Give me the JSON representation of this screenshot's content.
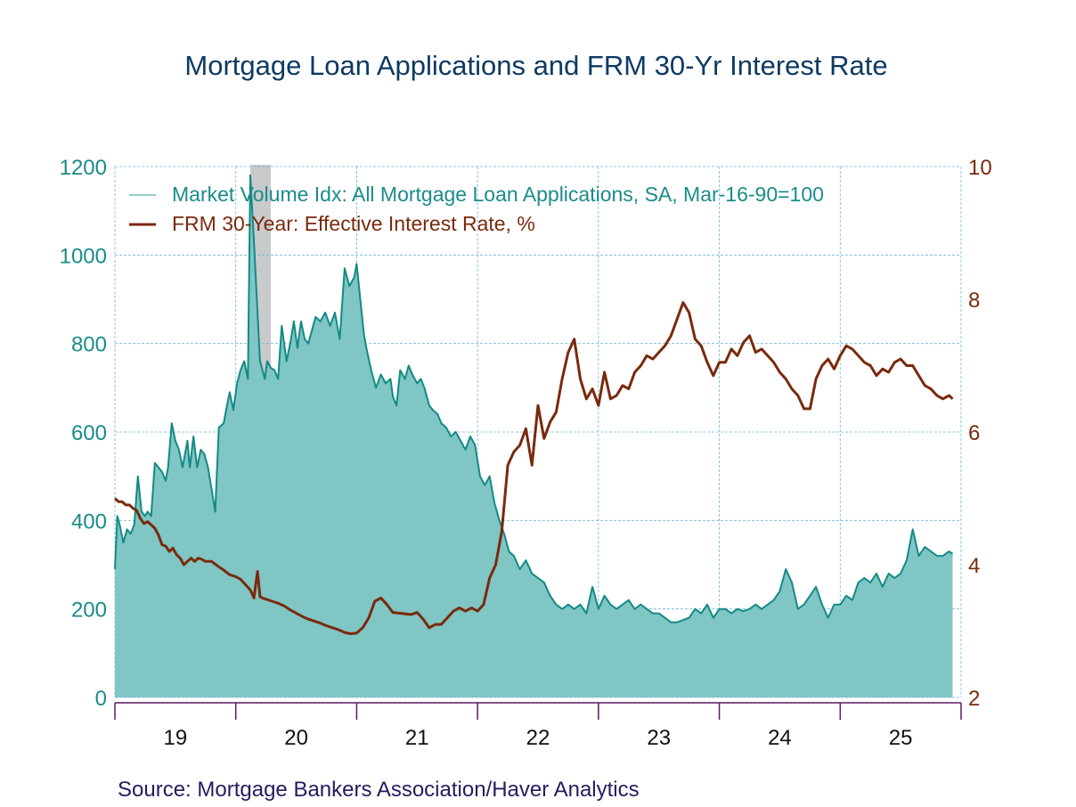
{
  "chart_data": {
    "type": "area+line",
    "title": "Mortgage Loan Applications and FRM 30-Yr Interest Rate",
    "source": "Source:  Mortgage Bankers Association/Haver Analytics",
    "xlabel": "",
    "x_tick_labels": [
      "19",
      "20",
      "21",
      "22",
      "23",
      "24",
      "25"
    ],
    "x_range": [
      2019.0,
      2026.0
    ],
    "left_axis": {
      "label": "Market Volume Idx",
      "ticks": [
        0,
        200,
        400,
        600,
        800,
        1000,
        1200
      ],
      "ylim": [
        0,
        1200
      ],
      "color": "#1a8c8a"
    },
    "right_axis": {
      "label": "FRM 30-Year %",
      "ticks": [
        2,
        4,
        6,
        8,
        10
      ],
      "ylim": [
        2,
        10
      ],
      "color": "#7a2a0c"
    },
    "grid": true,
    "legend_position": "top-left inside",
    "recession_shading": {
      "start": 2020.12,
      "end": 2020.29,
      "color": "#c8cacc"
    },
    "series": [
      {
        "name": "Market Volume Idx: All Mortgage Loan Applications, SA, Mar-16-90=100",
        "axis": "left",
        "style": "area",
        "line_color": "#138a86",
        "fill_color": "#7fc6c4",
        "x": [
          2019.0,
          2019.02,
          2019.04,
          2019.07,
          2019.1,
          2019.13,
          2019.16,
          2019.19,
          2019.22,
          2019.25,
          2019.27,
          2019.3,
          2019.33,
          2019.36,
          2019.39,
          2019.42,
          2019.44,
          2019.47,
          2019.5,
          2019.53,
          2019.56,
          2019.6,
          2019.62,
          2019.65,
          2019.68,
          2019.71,
          2019.74,
          2019.77,
          2019.8,
          2019.83,
          2019.86,
          2019.9,
          2019.92,
          2019.95,
          2019.98,
          2020.01,
          2020.04,
          2020.07,
          2020.1,
          2020.12,
          2020.15,
          2020.18,
          2020.2,
          2020.22,
          2020.24,
          2020.26,
          2020.29,
          2020.32,
          2020.35,
          2020.38,
          2020.42,
          2020.45,
          2020.48,
          2020.51,
          2020.54,
          2020.57,
          2020.6,
          2020.63,
          2020.66,
          2020.7,
          2020.74,
          2020.78,
          2020.82,
          2020.86,
          2020.9,
          2020.94,
          2020.98,
          2021.0,
          2021.03,
          2021.06,
          2021.08,
          2021.12,
          2021.16,
          2021.2,
          2021.24,
          2021.28,
          2021.3,
          2021.33,
          2021.36,
          2021.4,
          2021.43,
          2021.46,
          2021.5,
          2021.53,
          2021.56,
          2021.6,
          2021.63,
          2021.67,
          2021.7,
          2021.74,
          2021.78,
          2021.82,
          2021.86,
          2021.9,
          2021.94,
          2021.98,
          2022.02,
          2022.06,
          2022.1,
          2022.14,
          2022.18,
          2022.22,
          2022.26,
          2022.3,
          2022.35,
          2022.4,
          2022.45,
          2022.5,
          2022.55,
          2022.6,
          2022.65,
          2022.7,
          2022.75,
          2022.8,
          2022.85,
          2022.9,
          2022.95,
          2023.0,
          2023.05,
          2023.1,
          2023.15,
          2023.2,
          2023.25,
          2023.3,
          2023.35,
          2023.4,
          2023.45,
          2023.5,
          2023.55,
          2023.6,
          2023.65,
          2023.7,
          2023.75,
          2023.8,
          2023.85,
          2023.9,
          2023.95,
          2024.0,
          2024.05,
          2024.1,
          2024.15,
          2024.2,
          2024.25,
          2024.3,
          2024.35,
          2024.4,
          2024.45,
          2024.5,
          2024.55,
          2024.6,
          2024.65,
          2024.7,
          2024.75,
          2024.8,
          2024.85,
          2024.9,
          2024.95,
          2025.0,
          2025.05,
          2025.1,
          2025.15,
          2025.2,
          2025.25,
          2025.3,
          2025.35,
          2025.4,
          2025.45,
          2025.5,
          2025.55,
          2025.6,
          2025.65,
          2025.7,
          2025.75,
          2025.8,
          2025.85,
          2025.9,
          2025.93
        ],
        "values": [
          290,
          410,
          390,
          350,
          380,
          370,
          390,
          500,
          420,
          410,
          420,
          410,
          530,
          520,
          510,
          490,
          520,
          620,
          580,
          560,
          520,
          580,
          520,
          590,
          520,
          560,
          550,
          520,
          470,
          420,
          610,
          620,
          650,
          690,
          650,
          710,
          740,
          760,
          720,
          1180,
          1030,
          870,
          760,
          740,
          720,
          760,
          745,
          740,
          720,
          840,
          760,
          800,
          850,
          790,
          850,
          810,
          800,
          830,
          860,
          850,
          870,
          840,
          870,
          810,
          970,
          930,
          950,
          980,
          900,
          820,
          790,
          740,
          700,
          730,
          710,
          720,
          680,
          660,
          740,
          720,
          750,
          730,
          710,
          720,
          700,
          660,
          650,
          640,
          620,
          610,
          590,
          600,
          580,
          560,
          590,
          570,
          500,
          480,
          500,
          440,
          400,
          370,
          330,
          320,
          290,
          310,
          280,
          270,
          260,
          230,
          210,
          200,
          210,
          200,
          210,
          190,
          250,
          200,
          230,
          210,
          200,
          210,
          220,
          200,
          210,
          200,
          190,
          190,
          180,
          170,
          170,
          175,
          180,
          200,
          190,
          210,
          180,
          200,
          200,
          190,
          200,
          195,
          200,
          210,
          200,
          210,
          220,
          240,
          290,
          260,
          200,
          210,
          230,
          250,
          210,
          180,
          210,
          210,
          230,
          220,
          260,
          270,
          260,
          280,
          250,
          280,
          270,
          280,
          310,
          380,
          320,
          340,
          330,
          320,
          320,
          330,
          325
        ]
      },
      {
        "name": "FRM 30-Year: Effective Interest Rate, %",
        "axis": "right",
        "style": "line",
        "color": "#7a2a0c",
        "x": [
          2019.0,
          2019.03,
          2019.06,
          2019.09,
          2019.12,
          2019.15,
          2019.18,
          2019.21,
          2019.24,
          2019.27,
          2019.3,
          2019.33,
          2019.36,
          2019.39,
          2019.42,
          2019.45,
          2019.48,
          2019.51,
          2019.54,
          2019.57,
          2019.6,
          2019.63,
          2019.66,
          2019.69,
          2019.72,
          2019.75,
          2019.8,
          2019.85,
          2019.9,
          2019.95,
          2020.0,
          2020.04,
          2020.08,
          2020.12,
          2020.15,
          2020.18,
          2020.2,
          2020.22,
          2020.25,
          2020.3,
          2020.35,
          2020.4,
          2020.45,
          2020.5,
          2020.55,
          2020.6,
          2020.65,
          2020.7,
          2020.75,
          2020.8,
          2020.85,
          2020.9,
          2020.95,
          2021.0,
          2021.05,
          2021.1,
          2021.15,
          2021.2,
          2021.25,
          2021.3,
          2021.35,
          2021.4,
          2021.45,
          2021.5,
          2021.55,
          2021.6,
          2021.65,
          2021.7,
          2021.75,
          2021.8,
          2021.85,
          2021.9,
          2021.95,
          2022.0,
          2022.05,
          2022.1,
          2022.15,
          2022.2,
          2022.25,
          2022.3,
          2022.35,
          2022.4,
          2022.45,
          2022.5,
          2022.55,
          2022.6,
          2022.65,
          2022.7,
          2022.75,
          2022.8,
          2022.85,
          2022.9,
          2022.95,
          2023.0,
          2023.05,
          2023.1,
          2023.15,
          2023.2,
          2023.25,
          2023.3,
          2023.35,
          2023.4,
          2023.45,
          2023.5,
          2023.55,
          2023.6,
          2023.65,
          2023.7,
          2023.75,
          2023.8,
          2023.85,
          2023.9,
          2023.95,
          2024.0,
          2024.05,
          2024.1,
          2024.15,
          2024.2,
          2024.25,
          2024.3,
          2024.35,
          2024.4,
          2024.45,
          2024.5,
          2024.55,
          2024.6,
          2024.65,
          2024.7,
          2024.75,
          2024.8,
          2024.85,
          2024.9,
          2024.95,
          2025.0,
          2025.05,
          2025.1,
          2025.15,
          2025.2,
          2025.25,
          2025.3,
          2025.35,
          2025.4,
          2025.45,
          2025.5,
          2025.55,
          2025.6,
          2025.65,
          2025.7,
          2025.75,
          2025.8,
          2025.85,
          2025.9,
          2025.93
        ],
        "values": [
          5.0,
          4.95,
          4.95,
          4.9,
          4.9,
          4.85,
          4.82,
          4.7,
          4.62,
          4.65,
          4.6,
          4.55,
          4.45,
          4.3,
          4.28,
          4.2,
          4.25,
          4.15,
          4.1,
          4.0,
          4.05,
          4.1,
          4.05,
          4.1,
          4.08,
          4.05,
          4.05,
          3.98,
          3.92,
          3.85,
          3.82,
          3.78,
          3.7,
          3.62,
          3.5,
          3.9,
          3.52,
          3.5,
          3.48,
          3.45,
          3.42,
          3.38,
          3.32,
          3.27,
          3.22,
          3.18,
          3.15,
          3.12,
          3.08,
          3.05,
          3.02,
          2.98,
          2.96,
          2.97,
          3.05,
          3.2,
          3.45,
          3.5,
          3.4,
          3.28,
          3.27,
          3.26,
          3.25,
          3.28,
          3.18,
          3.05,
          3.1,
          3.1,
          3.2,
          3.3,
          3.35,
          3.3,
          3.35,
          3.3,
          3.4,
          3.8,
          4.0,
          4.5,
          5.5,
          5.7,
          5.8,
          6.05,
          5.5,
          6.4,
          5.9,
          6.15,
          6.3,
          6.8,
          7.2,
          7.4,
          6.8,
          6.5,
          6.65,
          6.4,
          6.9,
          6.5,
          6.55,
          6.7,
          6.65,
          6.9,
          7.0,
          7.15,
          7.1,
          7.2,
          7.3,
          7.45,
          7.7,
          7.95,
          7.8,
          7.4,
          7.3,
          7.05,
          6.85,
          7.05,
          7.05,
          7.25,
          7.15,
          7.35,
          7.45,
          7.2,
          7.25,
          7.15,
          7.05,
          6.9,
          6.8,
          6.65,
          6.55,
          6.35,
          6.35,
          6.8,
          7.0,
          7.1,
          6.95,
          7.15,
          7.3,
          7.25,
          7.15,
          7.05,
          7.0,
          6.85,
          6.95,
          6.9,
          7.05,
          7.1,
          7.0,
          7.0,
          6.85,
          6.7,
          6.65,
          6.55,
          6.5,
          6.55,
          6.5
        ]
      }
    ]
  },
  "legend": {
    "items": [
      {
        "label": "Market Volume Idx: All Mortgage Loan Applications, SA, Mar-16-90=100",
        "color": "#1a8c8a"
      },
      {
        "label": "FRM 30-Year: Effective Interest Rate, %",
        "color": "#7a2a0c"
      }
    ]
  }
}
